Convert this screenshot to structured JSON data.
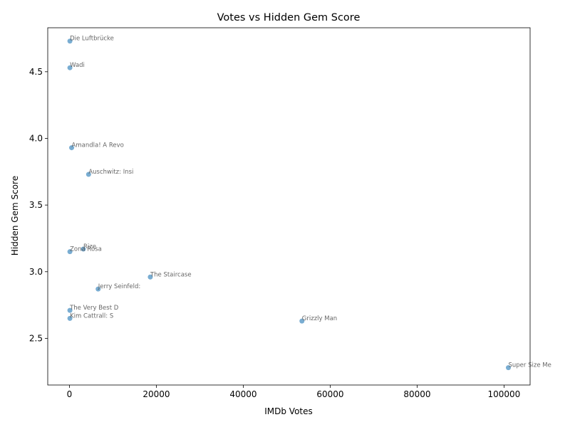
{
  "chart_data": {
    "type": "scatter",
    "title": "Votes vs Hidden Gem Score",
    "xlabel": "IMDb Votes",
    "ylabel": "Hidden Gem Score",
    "xlim": [
      -5000,
      106000
    ],
    "ylim": [
      2.15,
      4.83
    ],
    "xticks": [
      0,
      20000,
      40000,
      60000,
      80000,
      100000
    ],
    "yticks": [
      2.5,
      3.0,
      3.5,
      4.0,
      4.5
    ],
    "grid": false,
    "marker_color": "#1f77b4",
    "points": [
      {
        "label": "Die Luftbrücke",
        "x": 100,
        "y": 4.73
      },
      {
        "label": "Wadi",
        "x": 100,
        "y": 4.53
      },
      {
        "label": "Amandla! A Revo",
        "x": 500,
        "y": 3.93
      },
      {
        "label": "Auschwitz: Insi",
        "x": 4400,
        "y": 3.73
      },
      {
        "label": "Rize",
        "x": 3200,
        "y": 3.17
      },
      {
        "label": "Zona Rosa",
        "x": 100,
        "y": 3.15
      },
      {
        "label": "The Staircase",
        "x": 18600,
        "y": 2.96
      },
      {
        "label": "Jerry Seinfeld:",
        "x": 6600,
        "y": 2.87
      },
      {
        "label": "The Very Best D",
        "x": 100,
        "y": 2.71
      },
      {
        "label": "Kim Cattrall: S",
        "x": 100,
        "y": 2.65
      },
      {
        "label": "Grizzly Man",
        "x": 53500,
        "y": 2.63
      },
      {
        "label": "Super Size Me",
        "x": 101000,
        "y": 2.28
      }
    ]
  }
}
